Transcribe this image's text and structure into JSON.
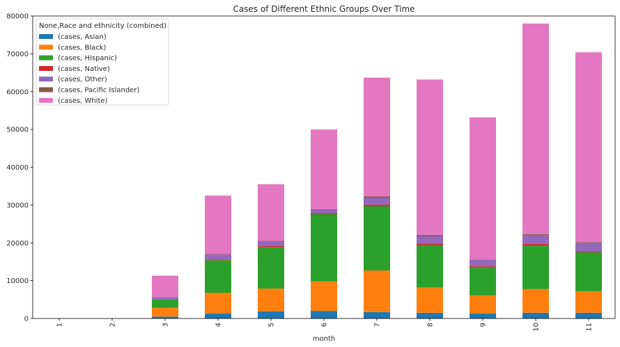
{
  "chart_data": {
    "type": "bar",
    "stacked": true,
    "title": "Cases of Different Ethnic Groups Over Time",
    "xlabel": "month",
    "ylabel": "",
    "ylim": [
      0,
      80000
    ],
    "yticks": [
      0,
      10000,
      20000,
      30000,
      40000,
      50000,
      60000,
      70000,
      80000
    ],
    "categories": [
      "1",
      "2",
      "3",
      "4",
      "5",
      "6",
      "7",
      "8",
      "9",
      "10",
      "11"
    ],
    "legend": {
      "title": "None,Race and ethnicity (combined)",
      "placement": "top-left"
    },
    "grid": false,
    "series": [
      {
        "name": "(cases, Asian)",
        "color": "#1f77b4",
        "values": [
          0,
          0,
          500,
          1300,
          1900,
          2000,
          1700,
          1500,
          1300,
          1500,
          1500
        ]
      },
      {
        "name": "(cases, Black)",
        "color": "#ff7f0e",
        "values": [
          0,
          0,
          2300,
          5500,
          6000,
          7800,
          11000,
          6700,
          4800,
          6300,
          5700
        ]
      },
      {
        "name": "(cases, Hispanic)",
        "color": "#2ca02c",
        "values": [
          0,
          0,
          2200,
          8600,
          11000,
          17800,
          17000,
          11200,
          7500,
          11500,
          10300
        ]
      },
      {
        "name": "(cases, Native)",
        "color": "#d62728",
        "values": [
          0,
          0,
          100,
          200,
          300,
          300,
          400,
          400,
          200,
          400,
          300
        ]
      },
      {
        "name": "(cases, Other)",
        "color": "#9467bd",
        "values": [
          0,
          0,
          500,
          1300,
          1200,
          800,
          1800,
          2000,
          1700,
          2300,
          2200
        ]
      },
      {
        "name": "(cases, Pacific Islander)",
        "color": "#8c564b",
        "values": [
          0,
          0,
          30,
          100,
          100,
          200,
          400,
          300,
          100,
          300,
          200
        ]
      },
      {
        "name": "(cases, White)",
        "color": "#e377c2",
        "values": [
          0,
          0,
          5700,
          15500,
          15000,
          21100,
          31400,
          41100,
          37600,
          55700,
          50200
        ]
      }
    ]
  }
}
